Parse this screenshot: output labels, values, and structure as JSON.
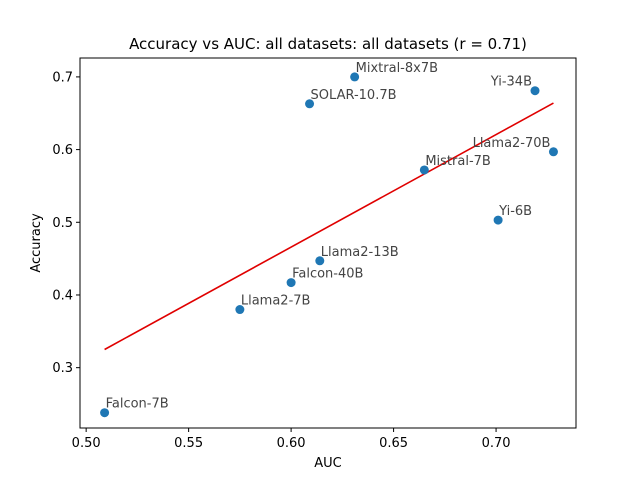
{
  "chart_data": {
    "type": "scatter",
    "title": "Accuracy vs AUC: all datasets: all datasets (r = 0.71)",
    "xlabel": "AUC",
    "ylabel": "Accuracy",
    "xlim": [
      0.497,
      0.739
    ],
    "ylim": [
      0.217,
      0.726
    ],
    "xticks": [
      0.5,
      0.55,
      0.6,
      0.65,
      0.7
    ],
    "xtick_labels": [
      "0.50",
      "0.55",
      "0.60",
      "0.65",
      "0.70"
    ],
    "yticks": [
      0.3,
      0.4,
      0.5,
      0.6,
      0.7
    ],
    "ytick_labels": [
      "0.3",
      "0.4",
      "0.5",
      "0.6",
      "0.7"
    ],
    "grid": false,
    "points": [
      {
        "label": "Falcon-7B",
        "x": 0.509,
        "y": 0.238
      },
      {
        "label": "Llama2-7B",
        "x": 0.575,
        "y": 0.38
      },
      {
        "label": "Falcon-40B",
        "x": 0.6,
        "y": 0.417
      },
      {
        "label": "Llama2-13B",
        "x": 0.614,
        "y": 0.447
      },
      {
        "label": "SOLAR-10.7B",
        "x": 0.609,
        "y": 0.663
      },
      {
        "label": "Mixtral-8x7B",
        "x": 0.631,
        "y": 0.7
      },
      {
        "label": "Mistral-7B",
        "x": 0.665,
        "y": 0.572
      },
      {
        "label": "Yi-6B",
        "x": 0.701,
        "y": 0.503
      },
      {
        "label": "Yi-34B",
        "x": 0.719,
        "y": 0.681
      },
      {
        "label": "Llama2-70B",
        "x": 0.728,
        "y": 0.597
      }
    ],
    "fit_line": {
      "x": [
        0.509,
        0.728
      ],
      "y": [
        0.325,
        0.664
      ]
    },
    "colors": {
      "points": "#1f77b4",
      "fit_line": "#e00000",
      "point_labels": "#444444"
    }
  }
}
